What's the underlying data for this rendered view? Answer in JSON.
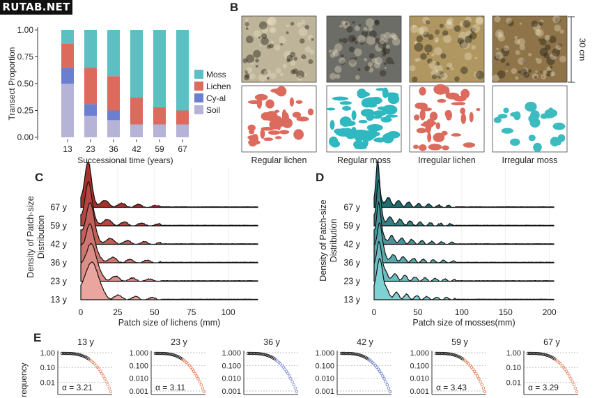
{
  "watermark": "RUTAB.NET",
  "panels": {
    "B": "B",
    "C": "C",
    "D": "D",
    "E": "E"
  },
  "colors": {
    "moss": "#5cbfc1",
    "lichen": "#dc6a5d",
    "cyal": "#6b7fd0",
    "soil": "#b5b3d6",
    "lichen_dark": "#a8302b",
    "moss_dark": "#1f6e73"
  },
  "chart_data": [
    {
      "id": "A",
      "type": "bar",
      "stacked": true,
      "categories": [
        "13",
        "23",
        "36",
        "42",
        "59",
        "67"
      ],
      "xlabel": "Successional time (years)",
      "ylabel": "Transect Proportion",
      "ylim": [
        0,
        1
      ],
      "yticks": [
        "0.00",
        "0.25",
        "0.50",
        "0.75",
        "1.00"
      ],
      "legend_position": "right",
      "series": [
        {
          "name": "Soil",
          "color": "#b5b3d6",
          "values": [
            0.5,
            0.2,
            0.16,
            0.12,
            0.12,
            0.12
          ]
        },
        {
          "name": "Cy-al",
          "color": "#6b7fd0",
          "values": [
            0.15,
            0.11,
            0.09,
            0.0,
            0.0,
            0.0
          ]
        },
        {
          "name": "Lichen",
          "color": "#dc6a5d",
          "values": [
            0.22,
            0.34,
            0.32,
            0.25,
            0.16,
            0.13
          ]
        },
        {
          "name": "Moss",
          "color": "#5cbfc1",
          "values": [
            0.13,
            0.35,
            0.43,
            0.63,
            0.72,
            0.75
          ]
        }
      ]
    },
    {
      "id": "B",
      "type": "image-grid",
      "scale_label": "30 cm",
      "labels": [
        "Regular lichen",
        "Regular moss",
        "Irregular lichen",
        "Irregular moss"
      ],
      "photo_tones": [
        "#bdb49a",
        "#6d6d68",
        "#b09762",
        "#8f7449"
      ],
      "mask_colors": [
        "#dc6a5d",
        "#2fb8bf",
        "#dc6a5d",
        "#3dbcc0"
      ]
    },
    {
      "id": "C",
      "type": "ridgeline",
      "xlabel": "Patch size of lichens (mm)",
      "ylabel": "Density of Patch-size Distribution",
      "xlim": [
        0,
        120
      ],
      "xticks": [
        "0",
        "25",
        "50",
        "75",
        "100"
      ],
      "groups": [
        "13 y",
        "23 y",
        "36 y",
        "42 y",
        "59 y",
        "67 y"
      ],
      "peak_mm": [
        8,
        7,
        6,
        6,
        5,
        5
      ]
    },
    {
      "id": "D",
      "type": "ridgeline",
      "xlabel": "Patch size of mosses(mm)",
      "ylabel": "Density of Patch-size Distribution",
      "xlim": [
        0,
        200
      ],
      "xticks": [
        "0",
        "50",
        "100",
        "150",
        "200"
      ],
      "groups": [
        "13 y",
        "23 y",
        "36 y",
        "42 y",
        "59 y",
        "67 y"
      ],
      "peak_mm": [
        7,
        6,
        6,
        5,
        5,
        4
      ]
    },
    {
      "id": "E",
      "type": "scatter",
      "ylabel": "requency",
      "log_y": true,
      "subplots": [
        {
          "title": "13 y",
          "alpha": "3.21",
          "yticks": [
            "1.00",
            "0.10",
            "0.01"
          ],
          "fit": "#e08563"
        },
        {
          "title": "23 y",
          "alpha": "3.11",
          "yticks": [
            "1.000",
            "0.100",
            "0.010",
            "0.001"
          ],
          "fit": "#e07a48"
        },
        {
          "title": "36 y",
          "alpha": "",
          "yticks": [
            "1.000",
            "0.100",
            "0.010",
            "0.001"
          ],
          "fit": "#7f8bd2"
        },
        {
          "title": "42 y",
          "alpha": "",
          "yticks": [
            "1.000",
            "0.100",
            "0.010",
            "0.001"
          ],
          "fit": "#5f77c5"
        },
        {
          "title": "59 y",
          "alpha": "3.43",
          "yticks": [
            "1.000",
            "0.100",
            "0.010",
            "0.001"
          ],
          "fit": "#e07a48"
        },
        {
          "title": "67 y",
          "alpha": "3.29",
          "yticks": [
            "1.00",
            "0.10",
            "0.01"
          ],
          "fit": "#e08563"
        }
      ],
      "alpha_prefix": "α ="
    }
  ]
}
